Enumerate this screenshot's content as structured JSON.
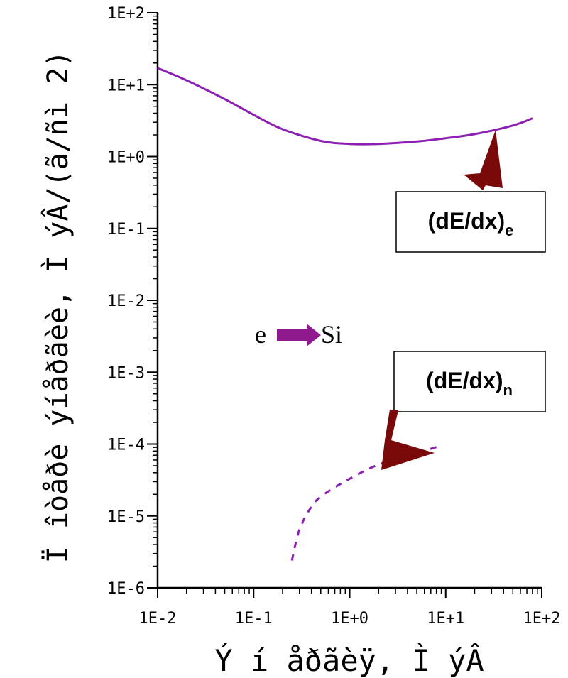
{
  "chart_data": {
    "type": "line",
    "xlabel": "Ý í åðãèÿ, Ì ýÂ",
    "ylabel": "Ï îòåðè ýíåðãèè, Ì ýÂ/(ã/ñì 2)",
    "x_scale": "log",
    "y_scale": "log",
    "xlim": [
      0.01,
      100
    ],
    "ylim": [
      1e-06,
      100
    ],
    "x_ticks": [
      0.01,
      0.1,
      1,
      10,
      100
    ],
    "x_tick_labels": [
      "1E-2",
      "1E-1",
      "1E+0",
      "1E+1",
      "1E+2"
    ],
    "y_ticks": [
      1e-06,
      1e-05,
      0.0001,
      0.001,
      0.01,
      0.1,
      1,
      10,
      100
    ],
    "y_tick_labels": [
      "1E-6",
      "1E-5",
      "1E-4",
      "1E-3",
      "1E-2",
      "1E-1",
      "1E+0",
      "1E+1",
      "1E+2"
    ],
    "grid": false,
    "series": [
      {
        "name": "(dE/dx)e",
        "style": "solid",
        "color": "#8e1fb3",
        "x": [
          0.01,
          0.02,
          0.05,
          0.1,
          0.2,
          0.5,
          1,
          2,
          5,
          10,
          20,
          50,
          80
        ],
        "y": [
          17,
          11.5,
          6.3,
          3.8,
          2.4,
          1.65,
          1.5,
          1.5,
          1.62,
          1.8,
          2.05,
          2.7,
          3.4
        ]
      },
      {
        "name": "(dE/dx)n",
        "style": "dashed",
        "color": "#8e1fb3",
        "x": [
          0.25,
          0.3,
          0.4,
          0.5,
          0.7,
          1,
          2,
          5,
          9
        ],
        "y": [
          2.4e-06,
          6.5e-06,
          1.35e-05,
          1.85e-05,
          2.5e-05,
          3.3e-05,
          5.2e-05,
          7.5e-05,
          9.55e-05
        ]
      }
    ],
    "annotations": [
      {
        "id": "electronic",
        "name": "dE/dx",
        "sub": "e",
        "paren_open": "(",
        "paren_close": ")"
      },
      {
        "id": "nuclear",
        "name": "dE/dx",
        "sub": "n",
        "paren_open": "(",
        "paren_close": ")"
      }
    ],
    "reaction": {
      "left": "e",
      "right": "Si"
    },
    "colors": {
      "curve": "#8e1fb3",
      "callout_arrow": "#7a0a0a",
      "reaction_arrow": "#8e1a8e",
      "axis": "#000000"
    }
  }
}
